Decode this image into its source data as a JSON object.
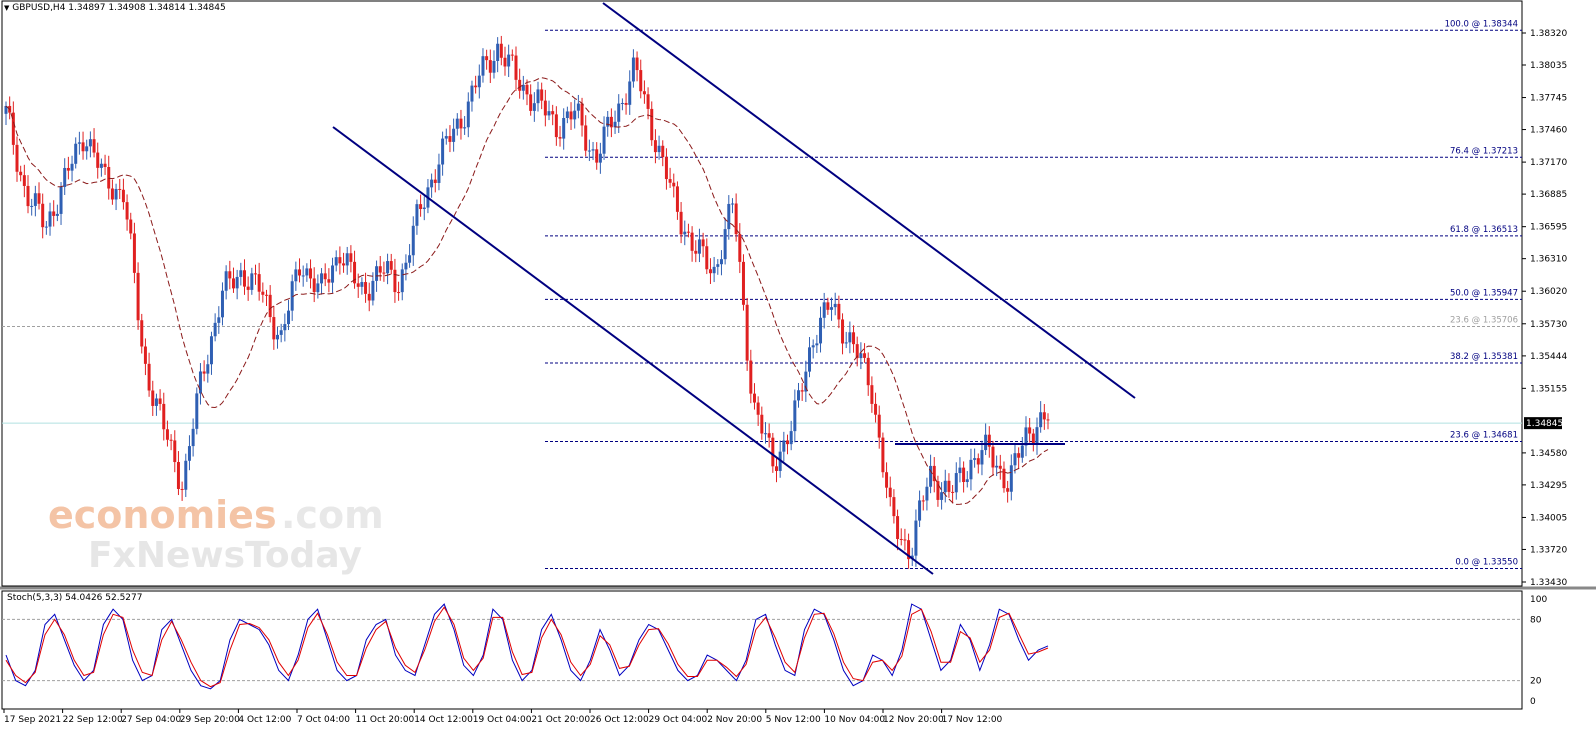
{
  "chart_data": [
    {
      "type": "candlestick",
      "symbol_header": "GBPUSD,H4  1.34897 1.34908 1.34814 1.34845",
      "ylim": [
        1.3343,
        1.3832
      ],
      "y_ticks": [
        "1.38320",
        "1.38035",
        "1.37745",
        "1.37460",
        "1.37170",
        "1.36885",
        "1.36595",
        "1.36310",
        "1.36020",
        "1.35730",
        "1.35444",
        "1.35155",
        "1.34580",
        "1.34295",
        "1.34005",
        "1.33720",
        "1.33430"
      ],
      "x_ticks": [
        "17 Sep 2021",
        "22 Sep 12:00",
        "27 Sep 04:00",
        "29 Sep 20:00",
        "4 Oct 12:00",
        "7 Oct 04:00",
        "11 Oct 20:00",
        "14 Oct 12:00",
        "19 Oct 04:00",
        "21 Oct 20:00",
        "26 Oct 12:00",
        "29 Oct 04:00",
        "2 Nov 20:00",
        "5 Nov 12:00",
        "10 Nov 04:00",
        "12 Nov 20:00",
        "17 Nov 12:00"
      ],
      "current_price": "1.34845",
      "close_path_waypoints": [
        1.376,
        1.369,
        1.366,
        1.37,
        1.3745,
        1.37,
        1.369,
        1.354,
        1.348,
        1.343,
        1.353,
        1.36,
        1.362,
        1.36,
        1.356,
        1.363,
        1.36,
        1.364,
        1.36,
        1.362,
        1.361,
        1.367,
        1.372,
        1.375,
        1.379,
        1.382,
        1.379,
        1.377,
        1.375,
        1.376,
        1.372,
        1.376,
        1.38,
        1.374,
        1.368,
        1.364,
        1.362,
        1.368,
        1.35,
        1.345,
        1.348,
        1.356,
        1.359,
        1.3555,
        1.352,
        1.34,
        1.337,
        1.344,
        1.342,
        1.345,
        1.346,
        1.343,
        1.348,
        1.3488
      ],
      "fibonacci": [
        {
          "label": "100.0 @ 1.38344",
          "price": 1.38344,
          "color": "#000080"
        },
        {
          "label": "76.4 @ 1.37213",
          "price": 1.37213,
          "color": "#000080"
        },
        {
          "label": "61.8 @ 1.36513",
          "price": 1.36513,
          "color": "#000080"
        },
        {
          "label": "50.0 @ 1.35947",
          "price": 1.35947,
          "color": "#000080"
        },
        {
          "label": "23.6 @ 1.35706",
          "price": 1.35706,
          "color": "#a0a0a0"
        },
        {
          "label": "38.2 @ 1.35381",
          "price": 1.35381,
          "color": "#000080"
        },
        {
          "label": "23.6 @ 1.34681",
          "price": 1.34681,
          "color": "#000080"
        },
        {
          "label": "0.0 @ 1.33550",
          "price": 1.3355,
          "color": "#000080"
        }
      ],
      "watermark_line1_a": "economies",
      "watermark_line1_b": ".com",
      "watermark_line2": "FxNewsToday"
    },
    {
      "type": "line",
      "label": "Stoch(5,3,3) 54.0426 52.5277",
      "ylim": [
        0,
        100
      ],
      "y_ticks": [
        "100",
        "80",
        "20",
        "0"
      ],
      "levels": [
        80,
        20
      ],
      "series": [
        {
          "values": [
            45,
            20,
            15,
            30,
            75,
            85,
            60,
            35,
            20,
            30,
            75,
            90,
            80,
            40,
            20,
            25,
            70,
            80,
            55,
            30,
            15,
            12,
            20,
            60,
            80,
            75,
            70,
            55,
            30,
            20,
            45,
            80,
            90,
            60,
            30,
            20,
            25,
            60,
            75,
            80,
            45,
            30,
            25,
            55,
            85,
            95,
            70,
            35,
            25,
            45,
            90,
            80,
            40,
            20,
            30,
            70,
            85,
            60,
            30,
            20,
            40,
            70,
            50,
            25,
            35,
            60,
            75,
            70,
            50,
            30,
            20,
            25,
            45,
            40,
            30,
            20,
            40,
            80,
            85,
            55,
            30,
            25,
            70,
            90,
            85,
            60,
            30,
            15,
            20,
            45,
            40,
            25,
            50,
            95,
            90,
            60,
            30,
            40,
            75,
            60,
            30,
            55,
            90,
            85,
            60,
            40,
            50,
            54
          ],
          "color": "#0000c0"
        },
        {
          "values": [
            40,
            25,
            18,
            28,
            65,
            80,
            65,
            40,
            25,
            28,
            65,
            85,
            82,
            50,
            28,
            25,
            60,
            78,
            60,
            38,
            20,
            14,
            18,
            50,
            75,
            76,
            72,
            60,
            38,
            25,
            40,
            72,
            86,
            65,
            38,
            25,
            25,
            52,
            70,
            78,
            52,
            35,
            28,
            50,
            78,
            92,
            75,
            42,
            30,
            42,
            82,
            82,
            48,
            26,
            28,
            62,
            80,
            65,
            38,
            25,
            36,
            64,
            55,
            32,
            34,
            55,
            70,
            71,
            56,
            36,
            24,
            24,
            40,
            40,
            33,
            24,
            36,
            70,
            82,
            62,
            38,
            28,
            62,
            85,
            86,
            66,
            38,
            22,
            20,
            38,
            40,
            30,
            44,
            85,
            90,
            68,
            38,
            38,
            68,
            62,
            38,
            50,
            82,
            86,
            66,
            46,
            48,
            52
          ],
          "color": "#e00000"
        }
      ]
    }
  ]
}
